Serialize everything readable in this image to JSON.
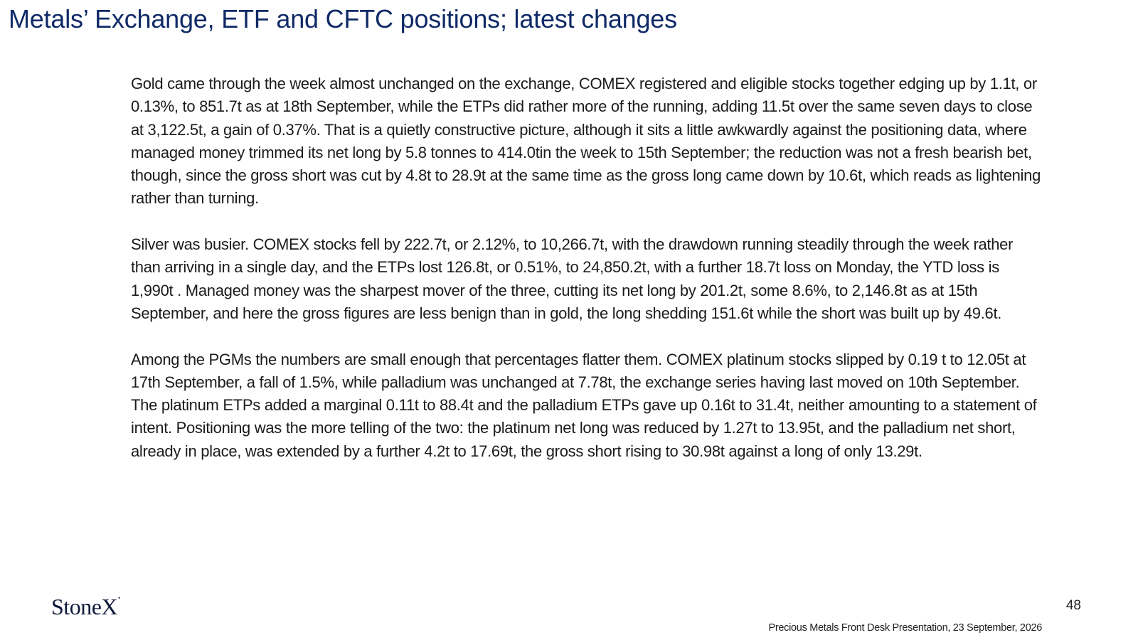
{
  "slide": {
    "title": "Metals’ Exchange, ETF and CFTC positions; latest changes",
    "paragraphs": [
      "Gold came through the week almost unchanged on the exchange, COMEX registered and eligible stocks together edging up by 1.1t, or 0.13%, to 851.7t as at 18th September, while the ETPs did rather more of the running, adding 11.5t over the same seven days to close at 3,122.5t, a gain of 0.37%. That is a quietly constructive picture, although it sits a little awkwardly against the positioning data, where managed money trimmed its net long by 5.8 tonnes to 414.0tin the week to 15th September; the reduction was not a fresh bearish bet, though, since the gross short was cut by 4.8t to 28.9t at the same time as the gross long came down by 10.6t, which reads as lightening rather than turning.",
      "Silver was busier. COMEX stocks fell by 222.7t, or 2.12%, to 10,266.7t, with the drawdown running steadily through the week rather than arriving in a single day, and the ETPs lost 126.8t, or 0.51%, to 24,850.2t, with a further 18.7t loss on Monday, the YTD loss is 1,990t . Managed money was the sharpest mover of the three, cutting its net long by 201.2t, some 8.6%, to 2,146.8t as at 15th September, and here the gross figures are less benign than in gold, the long shedding 151.6t while the short was built up by 49.6t.",
      "Among the PGMs the numbers are small enough that percentages flatter them. COMEX platinum stocks slipped by 0.19 t to 12.05t at 17th September, a fall of 1.5%, while palladium was unchanged at 7.78t, the exchange series having last moved on 10th September. The platinum ETPs added a marginal 0.11t to 88.4t and the palladium ETPs gave up 0.16t to 31.4t, neither amounting to a statement of intent. Positioning was the more telling of the two: the platinum net long was reduced by 1.27t to 13.95t, and the palladium net short, already in place, was extended by a further 4.2t to 17.69t, the gross short rising to 30.98t against a long of only 13.29t."
    ]
  },
  "footer": {
    "logo_text": "StoneX",
    "logo_mark": "•",
    "page_number": "48",
    "caption": "Precious Metals Front Desk Presentation, 23 September, 2026"
  },
  "colors": {
    "title": "#0f2a66",
    "body_text": "#1b1b1b",
    "logo": "#0e1a3a",
    "background": "#ffffff"
  }
}
